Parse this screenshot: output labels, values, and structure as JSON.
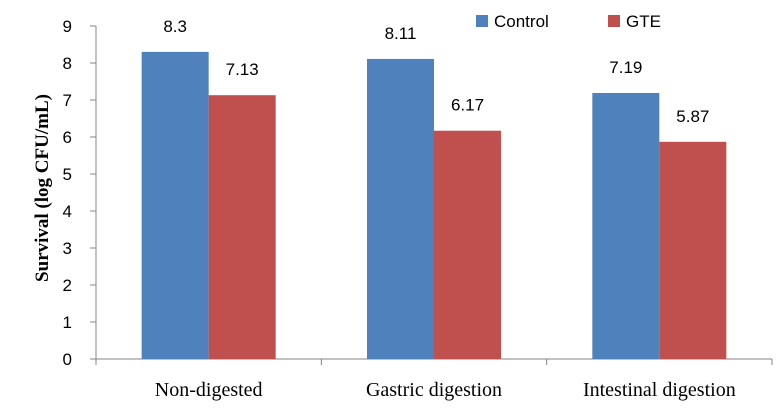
{
  "chart_data": {
    "type": "bar",
    "title": "",
    "xlabel": "",
    "ylabel": "Survival (log CFU/mL)",
    "categories": [
      "Non-digested",
      "Gastric digestion",
      "Intestinal digestion"
    ],
    "series": [
      {
        "name": "Control",
        "color": "#4F81BD",
        "values": [
          8.3,
          8.11,
          7.19
        ],
        "labels": [
          "8.3",
          "8.11",
          "7.19"
        ]
      },
      {
        "name": "GTE",
        "color": "#C0504D",
        "values": [
          7.13,
          6.17,
          5.87
        ],
        "labels": [
          "7.13",
          "6.17",
          "5.87"
        ]
      }
    ],
    "ylim": [
      0,
      9
    ],
    "yticks": [
      0,
      1,
      2,
      3,
      4,
      5,
      6,
      7,
      8,
      9
    ],
    "ytick_labels": [
      "0",
      "1",
      "2",
      "3",
      "4",
      "5",
      "6",
      "7",
      "8",
      "9"
    ],
    "grid": false,
    "legend_position": "top-right"
  }
}
